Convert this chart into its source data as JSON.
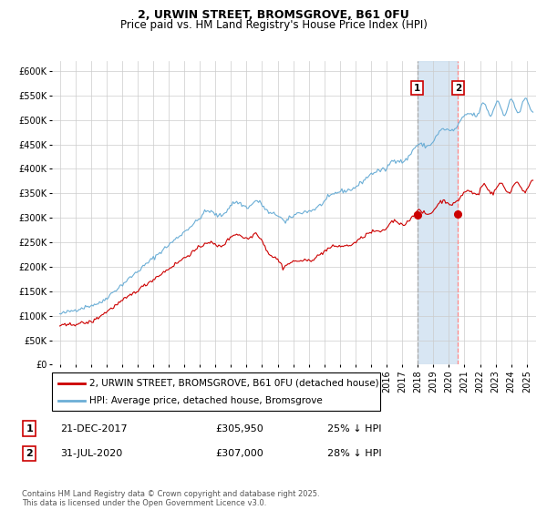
{
  "title": "2, URWIN STREET, BROMSGROVE, B61 0FU",
  "subtitle": "Price paid vs. HM Land Registry's House Price Index (HPI)",
  "title_fontsize": 9,
  "subtitle_fontsize": 8.5,
  "ylim": [
    0,
    620000
  ],
  "yticks": [
    0,
    50000,
    100000,
    150000,
    200000,
    250000,
    300000,
    350000,
    400000,
    450000,
    500000,
    550000,
    600000
  ],
  "ytick_labels": [
    "£0",
    "£50K",
    "£100K",
    "£150K",
    "£200K",
    "£250K",
    "£300K",
    "£350K",
    "£400K",
    "£450K",
    "£500K",
    "£550K",
    "£600K"
  ],
  "hpi_color": "#6baed6",
  "price_color": "#cc0000",
  "background_color": "#ffffff",
  "grid_color": "#cccccc",
  "shade_color": "#cfe0f0",
  "vline1_color": "#aaaaaa",
  "vline2_color": "#ff8888",
  "marker_color": "#cc0000",
  "legend_label_price": "2, URWIN STREET, BROMSGROVE, B61 0FU (detached house)",
  "legend_label_hpi": "HPI: Average price, detached house, Bromsgrove",
  "sale1_date": "21-DEC-2017",
  "sale1_price": "£305,950",
  "sale1_pct": "25% ↓ HPI",
  "sale1_year": 2017.97,
  "sale1_value": 305950,
  "sale2_date": "31-JUL-2020",
  "sale2_price": "£307,000",
  "sale2_pct": "28% ↓ HPI",
  "sale2_year": 2020.58,
  "sale2_value": 307000,
  "footnote": "Contains HM Land Registry data © Crown copyright and database right 2025.\nThis data is licensed under the Open Government Licence v3.0.",
  "tick_fontsize": 7,
  "legend_fontsize": 7.5,
  "ann_fontsize": 8,
  "footnote_fontsize": 6
}
